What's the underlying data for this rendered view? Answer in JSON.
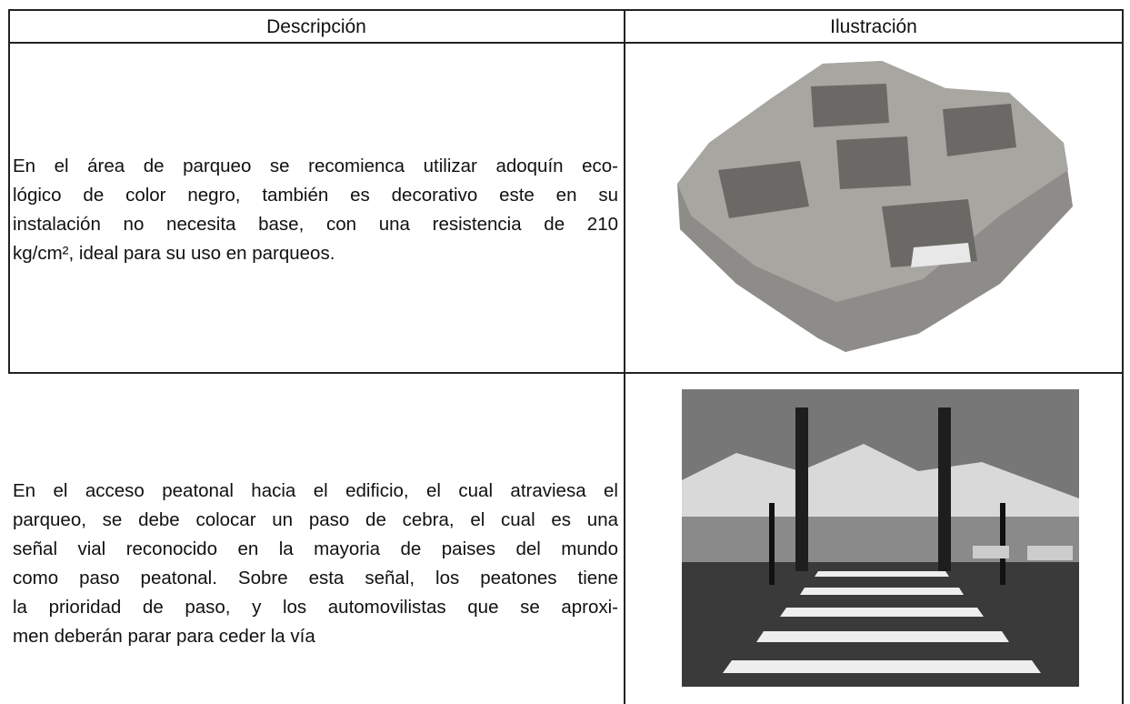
{
  "table": {
    "header": [
      "Descripción",
      "Ilustración"
    ],
    "rows": [
      {
        "description_lines": [
          "En el área de parqueo se recomienca utilizar adoquín eco-",
          "lógico de color negro, también es decorativo este en su",
          "instalación no necesita base, con una resistencia de 210",
          "kg/cm², ideal para su uso en parqueos."
        ]
      },
      {
        "description_lines": [
          "En el acceso peatonal hacia el edificio, el cual atraviesa el",
          "parqueo, se debe colocar un paso de cebra, el cual es una",
          "señal vial reconocido en la mayoria de paises del mundo",
          "como paso peatonal. Sobre esta señal, los peatones tiene",
          "la prioridad de paso, y los automovilistas que se aproxi-",
          "men deberán parar para ceder la vía"
        ]
      }
    ]
  }
}
